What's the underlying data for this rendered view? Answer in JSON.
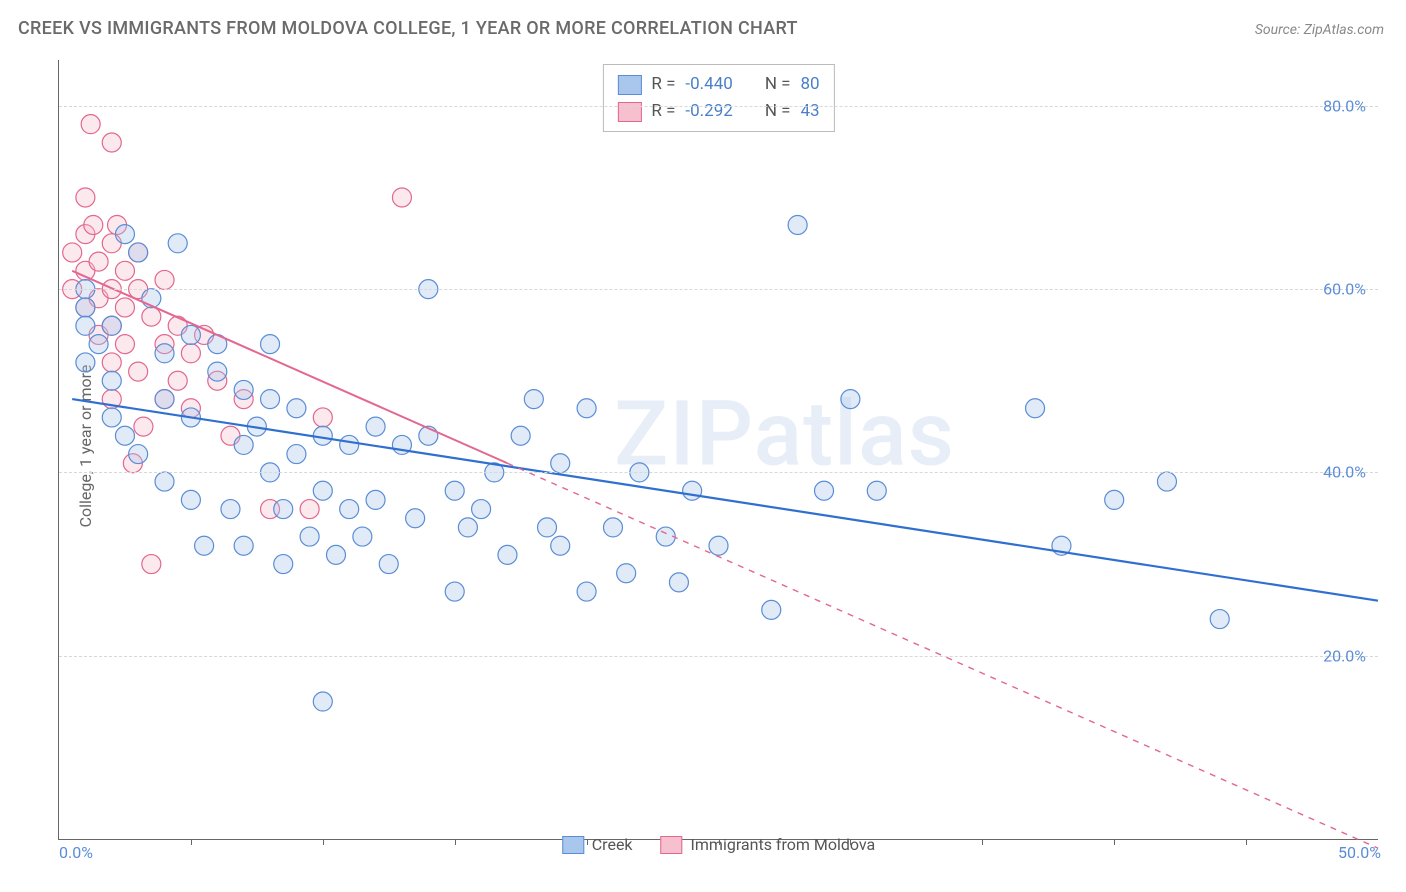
{
  "title": "CREEK VS IMMIGRANTS FROM MOLDOVA COLLEGE, 1 YEAR OR MORE CORRELATION CHART",
  "source_prefix": "Source: ",
  "source_name": "ZipAtlas.com",
  "y_axis_label": "College, 1 year or more",
  "watermark": "ZIPatlas",
  "chart": {
    "type": "scatter",
    "background_color": "#ffffff",
    "grid_color": "#d8d8d8",
    "axis_color": "#666666",
    "x_domain": [
      0,
      50
    ],
    "y_domain": [
      0,
      85
    ],
    "y_ticks": [
      20,
      40,
      60,
      80
    ],
    "y_tick_labels": [
      "20.0%",
      "40.0%",
      "60.0%",
      "80.0%"
    ],
    "y_tick_color": "#5b8dd6",
    "y_tick_fontsize": 16,
    "x_ticks_minor": [
      5,
      10,
      15,
      20,
      25,
      30,
      35,
      40,
      45
    ],
    "x_labels": [
      {
        "x": 0,
        "text": "0.0%"
      },
      {
        "x": 50,
        "text": "50.0%"
      }
    ],
    "marker_radius": 9.5,
    "series": [
      {
        "name": "Creek",
        "color_fill": "#a9c6ec",
        "color_stroke": "#5b8dd6",
        "R": "-0.440",
        "N": "80",
        "trend": {
          "x1": 0.5,
          "y1": 48,
          "x2": 50,
          "y2": 26,
          "color": "#2f6fd0",
          "width": 2.2,
          "solid_until_x": 50
        },
        "points": [
          [
            1,
            60
          ],
          [
            1,
            58
          ],
          [
            1,
            56
          ],
          [
            1,
            52
          ],
          [
            1.5,
            54
          ],
          [
            2,
            50
          ],
          [
            2,
            56
          ],
          [
            2,
            46
          ],
          [
            2.5,
            66
          ],
          [
            2.5,
            44
          ],
          [
            3,
            42
          ],
          [
            3,
            64
          ],
          [
            3.5,
            59
          ],
          [
            4,
            53
          ],
          [
            4,
            39
          ],
          [
            4,
            48
          ],
          [
            4.5,
            65
          ],
          [
            5,
            37
          ],
          [
            5,
            55
          ],
          [
            5,
            46
          ],
          [
            5.5,
            32
          ],
          [
            6,
            51
          ],
          [
            6,
            54
          ],
          [
            6.5,
            36
          ],
          [
            7,
            49
          ],
          [
            7,
            43
          ],
          [
            7,
            32
          ],
          [
            7.5,
            45
          ],
          [
            8,
            48
          ],
          [
            8,
            54
          ],
          [
            8,
            40
          ],
          [
            8.5,
            36
          ],
          [
            8.5,
            30
          ],
          [
            9,
            47
          ],
          [
            9,
            42
          ],
          [
            9.5,
            33
          ],
          [
            10,
            38
          ],
          [
            10,
            44
          ],
          [
            10,
            15
          ],
          [
            10.5,
            31
          ],
          [
            11,
            36
          ],
          [
            11,
            43
          ],
          [
            11.5,
            33
          ],
          [
            12,
            37
          ],
          [
            12,
            45
          ],
          [
            12.5,
            30
          ],
          [
            13,
            43
          ],
          [
            13.5,
            35
          ],
          [
            14,
            60
          ],
          [
            14,
            44
          ],
          [
            15,
            38
          ],
          [
            15,
            27
          ],
          [
            15.5,
            34
          ],
          [
            16,
            36
          ],
          [
            16.5,
            40
          ],
          [
            17,
            31
          ],
          [
            17.5,
            44
          ],
          [
            18,
            48
          ],
          [
            18.5,
            34
          ],
          [
            19,
            41
          ],
          [
            19,
            32
          ],
          [
            20,
            47
          ],
          [
            20,
            27
          ],
          [
            21,
            34
          ],
          [
            21.5,
            29
          ],
          [
            22,
            40
          ],
          [
            23,
            33
          ],
          [
            23.5,
            28
          ],
          [
            24,
            38
          ],
          [
            25,
            32
          ],
          [
            27,
            25
          ],
          [
            28,
            67
          ],
          [
            29,
            38
          ],
          [
            30,
            48
          ],
          [
            31,
            38
          ],
          [
            37,
            47
          ],
          [
            40,
            37
          ],
          [
            42,
            39
          ],
          [
            44,
            24
          ],
          [
            38,
            32
          ]
        ]
      },
      {
        "name": "Immigrants from Moldova",
        "color_fill": "#f6c0cf",
        "color_stroke": "#e3678e",
        "R": "-0.292",
        "N": "43",
        "trend": {
          "x1": 0.5,
          "y1": 62,
          "x2": 50,
          "y2": -1,
          "color": "#e3678e",
          "width": 2.0,
          "solid_until_x": 17
        },
        "points": [
          [
            0.5,
            64
          ],
          [
            0.5,
            60
          ],
          [
            1,
            66
          ],
          [
            1,
            62
          ],
          [
            1,
            70
          ],
          [
            1,
            58
          ],
          [
            1.2,
            78
          ],
          [
            1.3,
            67
          ],
          [
            1.5,
            63
          ],
          [
            1.5,
            59
          ],
          [
            1.5,
            55
          ],
          [
            2,
            76
          ],
          [
            2,
            65
          ],
          [
            2,
            60
          ],
          [
            2,
            56
          ],
          [
            2,
            52
          ],
          [
            2,
            48
          ],
          [
            2.2,
            67
          ],
          [
            2.5,
            58
          ],
          [
            2.5,
            62
          ],
          [
            2.5,
            54
          ],
          [
            3,
            64
          ],
          [
            3,
            60
          ],
          [
            3,
            51
          ],
          [
            3.2,
            45
          ],
          [
            3.5,
            30
          ],
          [
            3.5,
            57
          ],
          [
            4,
            61
          ],
          [
            4,
            54
          ],
          [
            4,
            48
          ],
          [
            4.5,
            56
          ],
          [
            4.5,
            50
          ],
          [
            5,
            53
          ],
          [
            5,
            47
          ],
          [
            5.5,
            55
          ],
          [
            6,
            50
          ],
          [
            6.5,
            44
          ],
          [
            7,
            48
          ],
          [
            8,
            36
          ],
          [
            9.5,
            36
          ],
          [
            10,
            46
          ],
          [
            13,
            70
          ],
          [
            2.8,
            41
          ]
        ]
      }
    ]
  }
}
